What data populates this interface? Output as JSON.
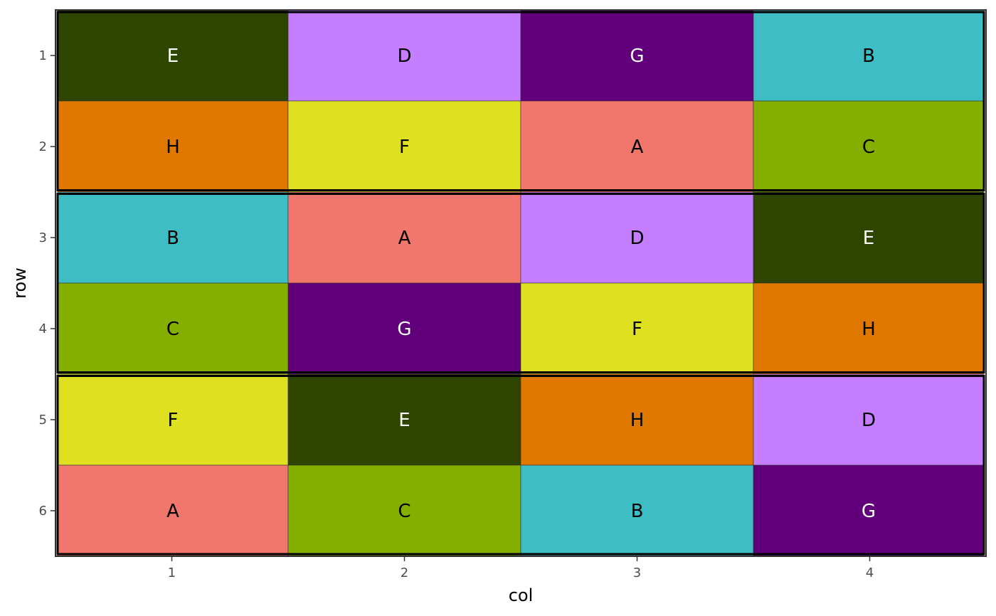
{
  "chart_data": {
    "type": "heatmap",
    "title": "",
    "xlabel": "col",
    "ylabel": "row",
    "x_ticks": [
      "1",
      "2",
      "3",
      "4"
    ],
    "y_ticks": [
      "1",
      "2",
      "3",
      "4",
      "5",
      "6"
    ],
    "xlim": [
      0.5,
      4.5
    ],
    "ylim": [
      0.5,
      6.5
    ],
    "y_reversed": true,
    "grid": false,
    "legend": "none",
    "treatment_colors": {
      "A": "#F1766C",
      "B": "#3EBDC4",
      "C": "#84AE00",
      "D": "#C57EFF",
      "E": "#2E4500",
      "F": "#DFE020",
      "G": "#61007A",
      "H": "#E07800"
    },
    "light_text_treatments": [
      "E",
      "G"
    ],
    "blocks": [
      {
        "rows": [
          1,
          2
        ]
      },
      {
        "rows": [
          3,
          4
        ]
      },
      {
        "rows": [
          5,
          6
        ]
      }
    ],
    "cells": [
      {
        "row": 1,
        "col": 1,
        "label": "E"
      },
      {
        "row": 1,
        "col": 2,
        "label": "D"
      },
      {
        "row": 1,
        "col": 3,
        "label": "G"
      },
      {
        "row": 1,
        "col": 4,
        "label": "B"
      },
      {
        "row": 2,
        "col": 1,
        "label": "H"
      },
      {
        "row": 2,
        "col": 2,
        "label": "F"
      },
      {
        "row": 2,
        "col": 3,
        "label": "A"
      },
      {
        "row": 2,
        "col": 4,
        "label": "C"
      },
      {
        "row": 3,
        "col": 1,
        "label": "B"
      },
      {
        "row": 3,
        "col": 2,
        "label": "A"
      },
      {
        "row": 3,
        "col": 3,
        "label": "D"
      },
      {
        "row": 3,
        "col": 4,
        "label": "E"
      },
      {
        "row": 4,
        "col": 1,
        "label": "C"
      },
      {
        "row": 4,
        "col": 2,
        "label": "G"
      },
      {
        "row": 4,
        "col": 3,
        "label": "F"
      },
      {
        "row": 4,
        "col": 4,
        "label": "H"
      },
      {
        "row": 5,
        "col": 1,
        "label": "F"
      },
      {
        "row": 5,
        "col": 2,
        "label": "E"
      },
      {
        "row": 5,
        "col": 3,
        "label": "H"
      },
      {
        "row": 5,
        "col": 4,
        "label": "D"
      },
      {
        "row": 6,
        "col": 1,
        "label": "A"
      },
      {
        "row": 6,
        "col": 2,
        "label": "C"
      },
      {
        "row": 6,
        "col": 3,
        "label": "B"
      },
      {
        "row": 6,
        "col": 4,
        "label": "G"
      }
    ]
  }
}
